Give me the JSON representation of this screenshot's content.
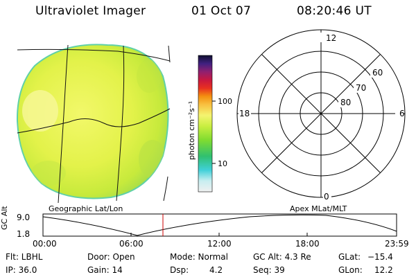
{
  "header": {
    "instrument": "Ultraviolet Imager",
    "date": "01 Oct 07",
    "time": "08:20:46 UT"
  },
  "left_panel": {
    "caption": "Geographic Lat/Lon"
  },
  "colorbar": {
    "unit_label": "photon cm⁻²s⁻¹",
    "ticks": [
      "100",
      "10"
    ]
  },
  "polar_panel": {
    "caption": "Apex MLat/MLT",
    "mlt_labels": {
      "top": "12",
      "right": "6",
      "bottom": "0",
      "left": "18"
    },
    "lat_labels": [
      "60",
      "70",
      "80"
    ]
  },
  "altitude_plot": {
    "ylabel": "GC Alt",
    "y_ticks": [
      "9.0",
      "1.8"
    ],
    "x_ticks": [
      "00:00",
      "06:00",
      "12:00",
      "18:00",
      "23:59"
    ],
    "marker_color": "#cc0000"
  },
  "info": {
    "filter": "Flt: LBHL",
    "ip": "IP: 36.0",
    "door": "Door: Open",
    "gain": "Gain: 14",
    "mode": "Mode: Normal",
    "dsp_label": "Dsp:",
    "dsp_value": "4.2",
    "gc_alt": "GC Alt: 4.3 Re",
    "seq": "Seq: 39",
    "glat_label": "GLat:",
    "glat_value": "−15.4",
    "glon_label": "GLon:",
    "glon_value": "12.2"
  }
}
